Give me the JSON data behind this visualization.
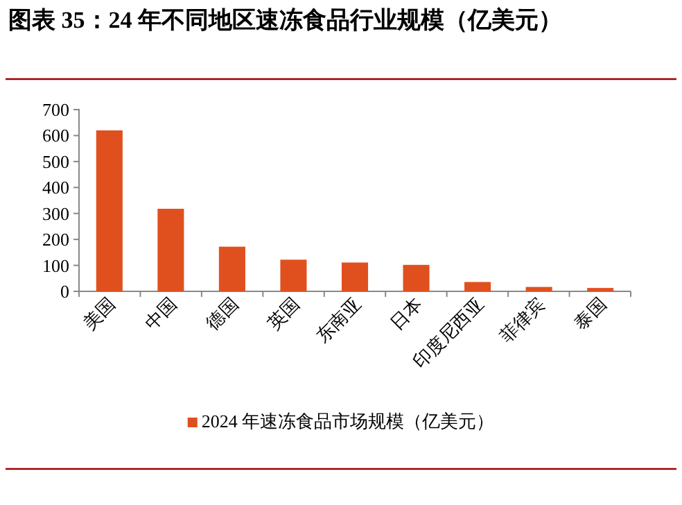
{
  "chart_data": {
    "type": "bar",
    "title": "图表 35：24 年不同地区速冻食品行业规模（亿美元）",
    "categories": [
      "美国",
      "中国",
      "德国",
      "英国",
      "东南亚",
      "日本",
      "印度尼西亚",
      "菲律宾",
      "泰国"
    ],
    "series": [
      {
        "name": "2024 年速冻食品市场规模（亿美元）",
        "color": "#e0501f",
        "values": [
          620,
          318,
          172,
          122,
          111,
          102,
          36,
          17,
          13
        ]
      }
    ],
    "ylim": [
      0,
      700
    ],
    "yticks": [
      0,
      100,
      200,
      300,
      400,
      500,
      600,
      700
    ],
    "grid": false,
    "legend": "bottom"
  }
}
